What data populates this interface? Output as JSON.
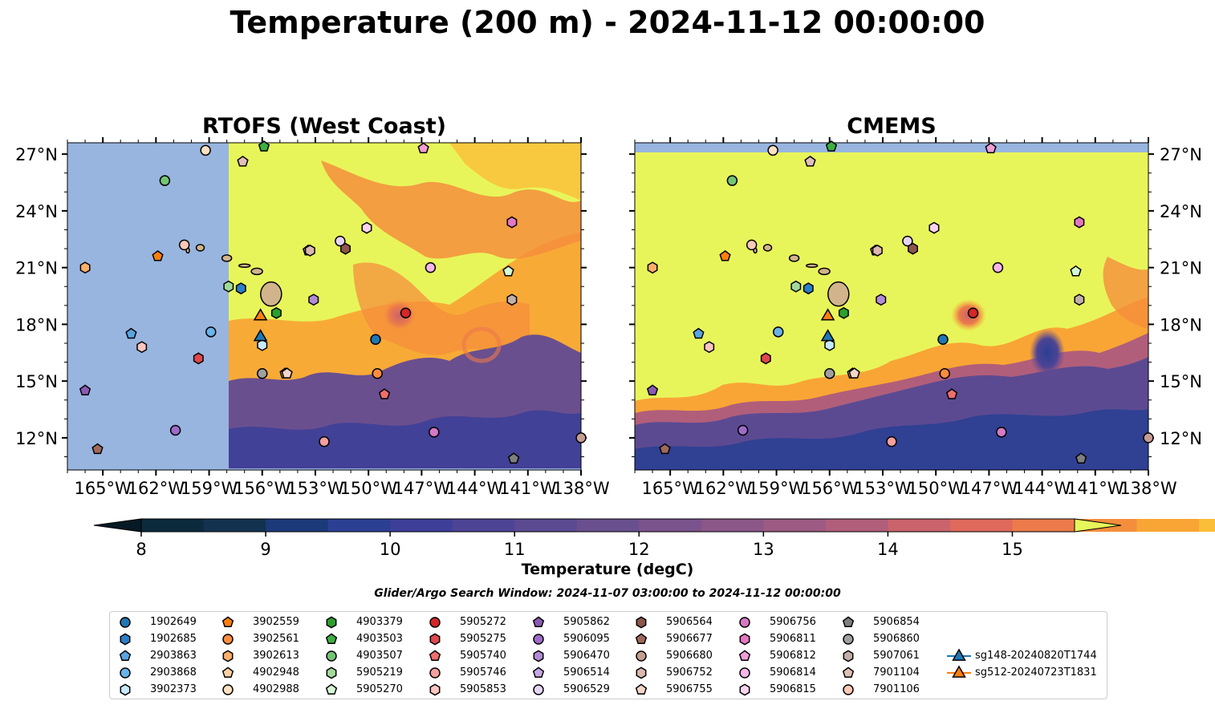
{
  "title": "Temperature (200 m) - 2024-11-12 00:00:00",
  "panels": [
    {
      "title": "RTOFS (West Coast)"
    },
    {
      "title": "CMEMS"
    }
  ],
  "colorbar": {
    "label": "Temperature (degC)",
    "min": 8,
    "max": 15.5,
    "step": 0.5,
    "ticks": [
      8,
      9,
      10,
      11,
      12,
      13,
      14,
      15
    ],
    "tick_labels": [
      "8",
      "9",
      "10",
      "11",
      "12",
      "13",
      "14",
      "15"
    ],
    "colors": [
      "#0b2a3c",
      "#13324f",
      "#1c3a7a",
      "#2b3f93",
      "#3d3f98",
      "#4d4495",
      "#5b4a92",
      "#6a4f8f",
      "#7a528c",
      "#8b5688",
      "#9d5a82",
      "#b15e7a",
      "#c9636c",
      "#df6a5c",
      "#ec7a4a",
      "#f58e3c",
      "#f9a535",
      "#fbbe38",
      "#f8d640",
      "#e8f55a"
    ],
    "extend_low_color": "#061a26",
    "extend_high_color": "#e7f65b"
  },
  "search_window": "Glider/Argo Search Window: 2024-11-07 03:00:00 to 2024-11-12 00:00:00",
  "chart_data": {
    "type": "map",
    "projection": "PlateCarree",
    "lon_range": [
      -167,
      -138
    ],
    "lat_range": [
      10.3,
      27.6
    ],
    "x_ticks": [
      -165,
      -162,
      -159,
      -156,
      -153,
      -150,
      -147,
      -144,
      -141,
      -138
    ],
    "x_tick_labels": [
      "165°W",
      "162°W",
      "159°W",
      "156°W",
      "153°W",
      "150°W",
      "147°W",
      "144°W",
      "141°W",
      "138°W"
    ],
    "y_ticks": [
      12,
      15,
      18,
      21,
      24,
      27
    ],
    "y_tick_labels": [
      "12°N",
      "15°N",
      "18°N",
      "21°N",
      "24°N",
      "27°N"
    ],
    "land_color": "#d2b48c",
    "nodata_color": "#98b5e0",
    "rtofs_domain_west_edge_lon": -157.9,
    "series": [
      {
        "name": "1902649",
        "marker": "circle",
        "color": "#1f77b4",
        "lon": -149.6,
        "lat": 17.2
      },
      {
        "name": "1902685",
        "marker": "hexagon",
        "color": "#2a7fc9",
        "lon": -157.2,
        "lat": 19.9
      },
      {
        "name": "2903863",
        "marker": "pentagon",
        "color": "#5aa5e0",
        "lon": -163.4,
        "lat": 17.5
      },
      {
        "name": "2903868",
        "marker": "circle",
        "color": "#6ab2e8",
        "lon": -158.9,
        "lat": 17.6
      },
      {
        "name": "3902373",
        "marker": "hexagon",
        "color": "#c7eaff",
        "lon": -156.0,
        "lat": 16.9
      },
      {
        "name": "3902559",
        "marker": "pentagon",
        "color": "#ff7f0e",
        "lon": -161.9,
        "lat": 21.6
      },
      {
        "name": "3902561",
        "marker": "circle",
        "color": "#fd8d3c",
        "lon": -149.5,
        "lat": 15.4
      },
      {
        "name": "3902613",
        "marker": "hexagon",
        "color": "#fdae6b",
        "lon": -166.0,
        "lat": 21.0
      },
      {
        "name": "4902948",
        "marker": "pentagon",
        "color": "#fdd0a2",
        "lon": -154.7,
        "lat": 15.4
      },
      {
        "name": "4902988",
        "marker": "circle",
        "color": "#ffe0c2",
        "lon": -159.2,
        "lat": 27.2
      },
      {
        "name": "4903379",
        "marker": "hexagon",
        "color": "#2ca02c",
        "lon": -155.2,
        "lat": 18.6
      },
      {
        "name": "4903503",
        "marker": "pentagon",
        "color": "#3cb043",
        "lon": -155.9,
        "lat": 27.4
      },
      {
        "name": "4903507",
        "marker": "circle",
        "color": "#74c476",
        "lon": -161.5,
        "lat": 25.6
      },
      {
        "name": "5905219",
        "marker": "hexagon",
        "color": "#a1d99b",
        "lon": -157.9,
        "lat": 20.0
      },
      {
        "name": "5905270",
        "marker": "pentagon",
        "color": "#d4f7d4",
        "lon": -142.1,
        "lat": 20.8
      },
      {
        "name": "5905272",
        "marker": "circle",
        "color": "#d62728",
        "lon": -147.9,
        "lat": 18.6
      },
      {
        "name": "5905275",
        "marker": "hexagon",
        "color": "#e0474c",
        "lon": -159.6,
        "lat": 16.2
      },
      {
        "name": "5905740",
        "marker": "pentagon",
        "color": "#ef6f6c",
        "lon": -149.1,
        "lat": 14.3
      },
      {
        "name": "5905746",
        "marker": "circle",
        "color": "#f4a09c",
        "lon": -152.5,
        "lat": 11.8
      },
      {
        "name": "5905853",
        "marker": "hexagon",
        "color": "#fcc5c0",
        "lon": -162.8,
        "lat": 16.8
      },
      {
        "name": "5905862",
        "marker": "pentagon",
        "color": "#8c59b3",
        "lon": -166.0,
        "lat": 14.5
      },
      {
        "name": "5906095",
        "marker": "circle",
        "color": "#9e6cc8",
        "lon": -160.9,
        "lat": 12.4
      },
      {
        "name": "5906470",
        "marker": "hexagon",
        "color": "#b08cd6",
        "lon": -153.1,
        "lat": 19.3
      },
      {
        "name": "5906514",
        "marker": "pentagon",
        "color": "#c6a8e6",
        "lon": -153.4,
        "lat": 21.9
      },
      {
        "name": "5906529",
        "marker": "circle",
        "color": "#e6d4f5",
        "lon": -151.6,
        "lat": 22.4
      },
      {
        "name": "5906564",
        "marker": "hexagon",
        "color": "#8c564b",
        "lon": -151.3,
        "lat": 22.0
      },
      {
        "name": "5906677",
        "marker": "pentagon",
        "color": "#a0695c",
        "lon": -165.3,
        "lat": 11.4
      },
      {
        "name": "5906680",
        "marker": "circle",
        "color": "#c49c94",
        "lon": -138.0,
        "lat": 12.0
      },
      {
        "name": "5906752",
        "marker": "hexagon",
        "color": "#dbb7ad",
        "lon": -153.3,
        "lat": 21.9
      },
      {
        "name": "5906755",
        "marker": "pentagon",
        "color": "#f5d5c8",
        "lon": -154.6,
        "lat": 15.4
      },
      {
        "name": "5906756",
        "marker": "circle",
        "color": "#d67ac4",
        "lon": -146.3,
        "lat": 12.3
      },
      {
        "name": "5906811",
        "marker": "hexagon",
        "color": "#e377c2",
        "lon": -141.9,
        "lat": 23.4
      },
      {
        "name": "5906812",
        "marker": "pentagon",
        "color": "#f19fd6",
        "lon": -146.9,
        "lat": 27.3
      },
      {
        "name": "5906814",
        "marker": "circle",
        "color": "#f7b6e8",
        "lon": -146.5,
        "lat": 21.0
      },
      {
        "name": "5906815",
        "marker": "hexagon",
        "color": "#fbd3f0",
        "lon": -150.1,
        "lat": 23.1
      },
      {
        "name": "5906854",
        "marker": "pentagon",
        "color": "#7f7f7f",
        "lon": -141.8,
        "lat": 10.9
      },
      {
        "name": "5906860",
        "marker": "circle",
        "color": "#a0a0a0",
        "lon": -156.0,
        "lat": 15.4
      },
      {
        "name": "5907061",
        "marker": "hexagon",
        "color": "#c0b0a8",
        "lon": -141.9,
        "lat": 19.3
      },
      {
        "name": "7901104",
        "marker": "pentagon",
        "color": "#e0c0b8",
        "lon": -157.1,
        "lat": 26.6
      },
      {
        "name": "7901106",
        "marker": "circle",
        "color": "#ffc8b8",
        "lon": -160.4,
        "lat": 22.2
      },
      {
        "name": "sg148-20240820T1744",
        "marker": "triangle",
        "color": "#1f77b4",
        "lon": -156.1,
        "lat": 17.4
      },
      {
        "name": "sg512-20240723T1831",
        "marker": "triangle",
        "color": "#ff7f0e",
        "lon": -156.1,
        "lat": 18.5
      }
    ]
  }
}
